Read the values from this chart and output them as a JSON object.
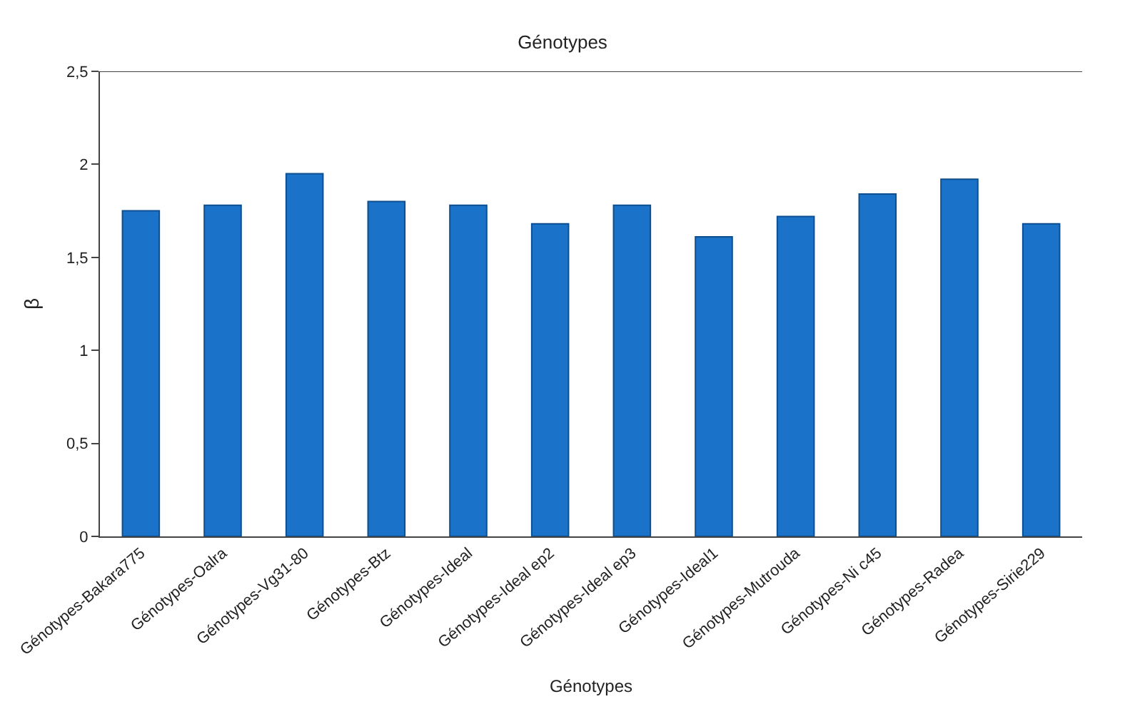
{
  "chart_data": {
    "type": "bar",
    "title": "Génotypes",
    "xlabel": "Génotypes",
    "ylabel": "β",
    "categories": [
      "Génotypes-Bakara775",
      "Génotypes-Oalra",
      "Génotypes-Vg31-80",
      "Génotypes-Btz",
      "Génotypes-Ideal",
      "Génotypes-Ideal ep2",
      "Génotypes-Ideal ep3",
      "Génotypes-Ideal1",
      "Génotypes-Mutrouda",
      "Génotypes-Ni c45",
      "Génotypes-Radea",
      "Génotypes-Sirie229"
    ],
    "values": [
      1.75,
      1.78,
      1.95,
      1.8,
      1.78,
      1.68,
      1.78,
      1.61,
      1.72,
      1.84,
      1.92,
      1.68
    ],
    "color": "#1a73c8",
    "ylim": [
      0,
      2.5
    ],
    "yticks": [
      0,
      {
        "value": 0.5,
        "label": "0,5"
      },
      1,
      {
        "value": 1.5,
        "label": "1,5"
      },
      2,
      {
        "value": 2.5,
        "label": "2,5"
      }
    ]
  }
}
